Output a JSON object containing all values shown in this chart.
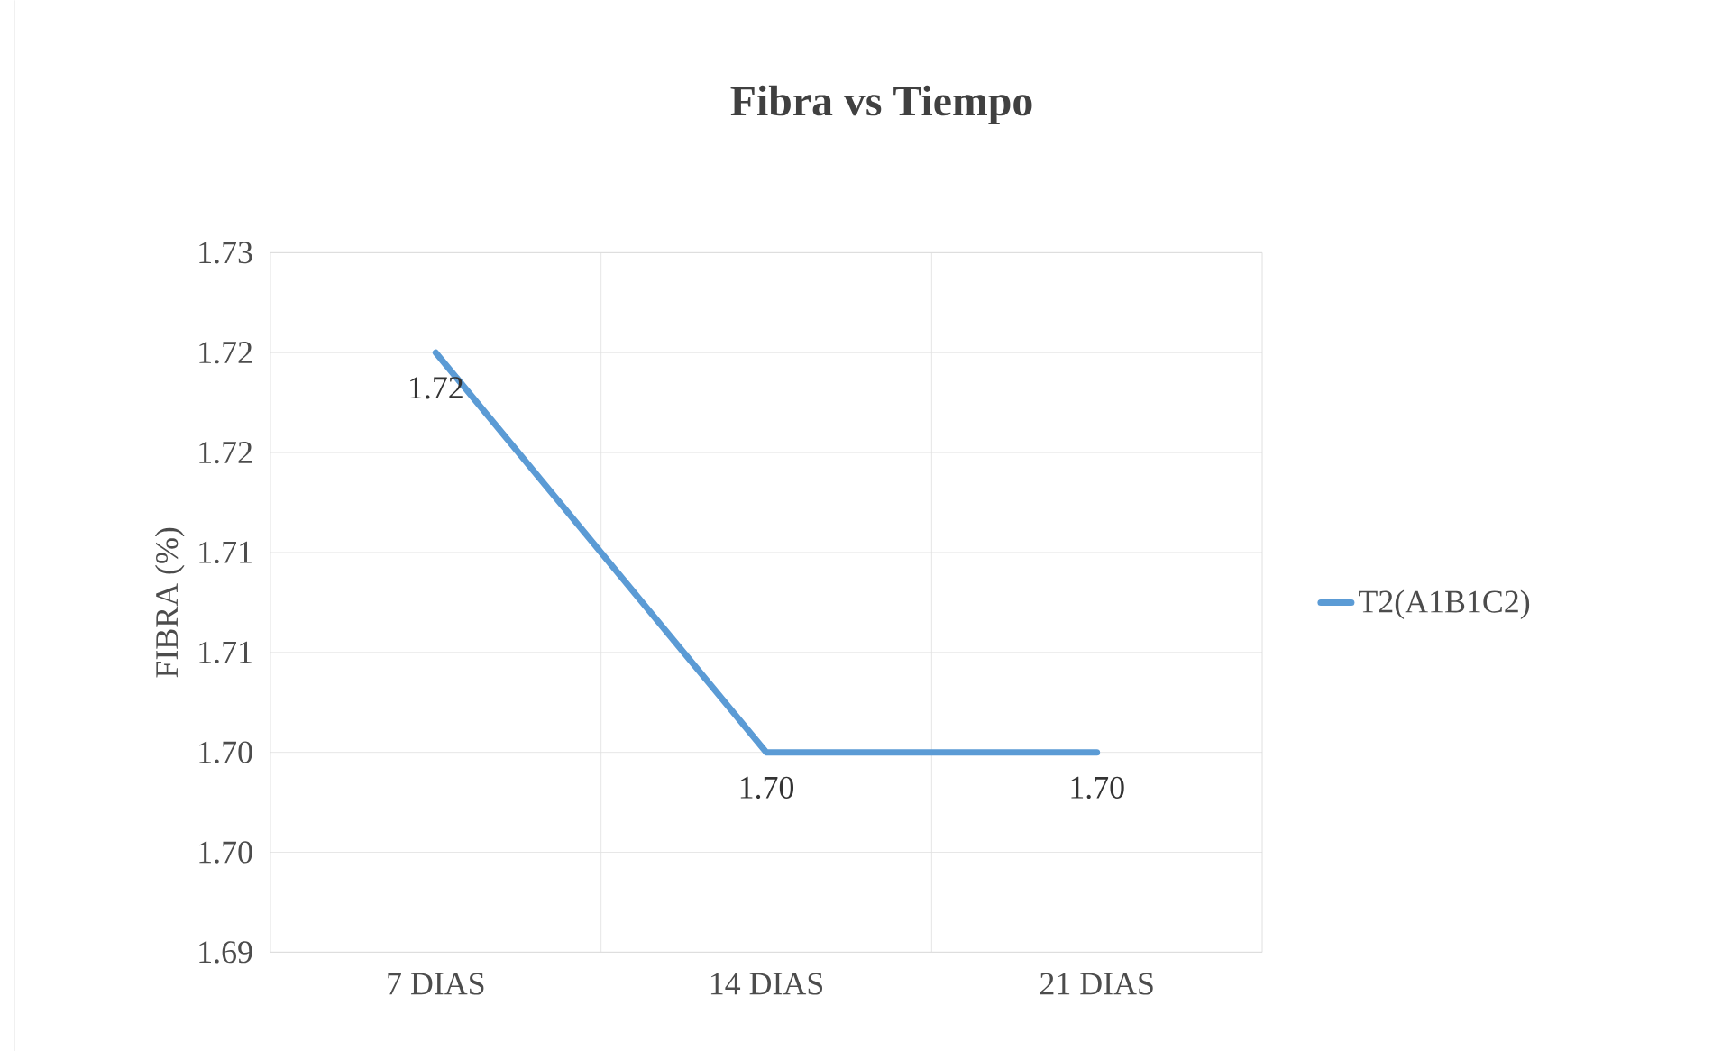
{
  "chart_data": {
    "type": "line",
    "title": "Fibra vs Tiempo",
    "ylabel": "FIBRA (%)",
    "categories": [
      "7 DIAS",
      "14 DIAS",
      "21 DIAS"
    ],
    "series": [
      {
        "name": "T2(A1B1C2)",
        "color": "#5b9bd5",
        "values": [
          1.72,
          1.7,
          1.7
        ],
        "value_labels": [
          "1.72",
          "1.70",
          "1.70"
        ]
      }
    ],
    "ylim": [
      1.69,
      1.725
    ],
    "yticks": [
      {
        "value": 1.69,
        "label": "1.69"
      },
      {
        "value": 1.695,
        "label": "1.70"
      },
      {
        "value": 1.7,
        "label": "1.70"
      },
      {
        "value": 1.705,
        "label": "1.71"
      },
      {
        "value": 1.71,
        "label": "1.71"
      },
      {
        "value": 1.715,
        "label": "1.72"
      },
      {
        "value": 1.72,
        "label": "1.72"
      },
      {
        "value": 1.725,
        "label": "1.73"
      }
    ],
    "grid": true,
    "legend": "right",
    "marker": "none",
    "line_style": "solid"
  }
}
